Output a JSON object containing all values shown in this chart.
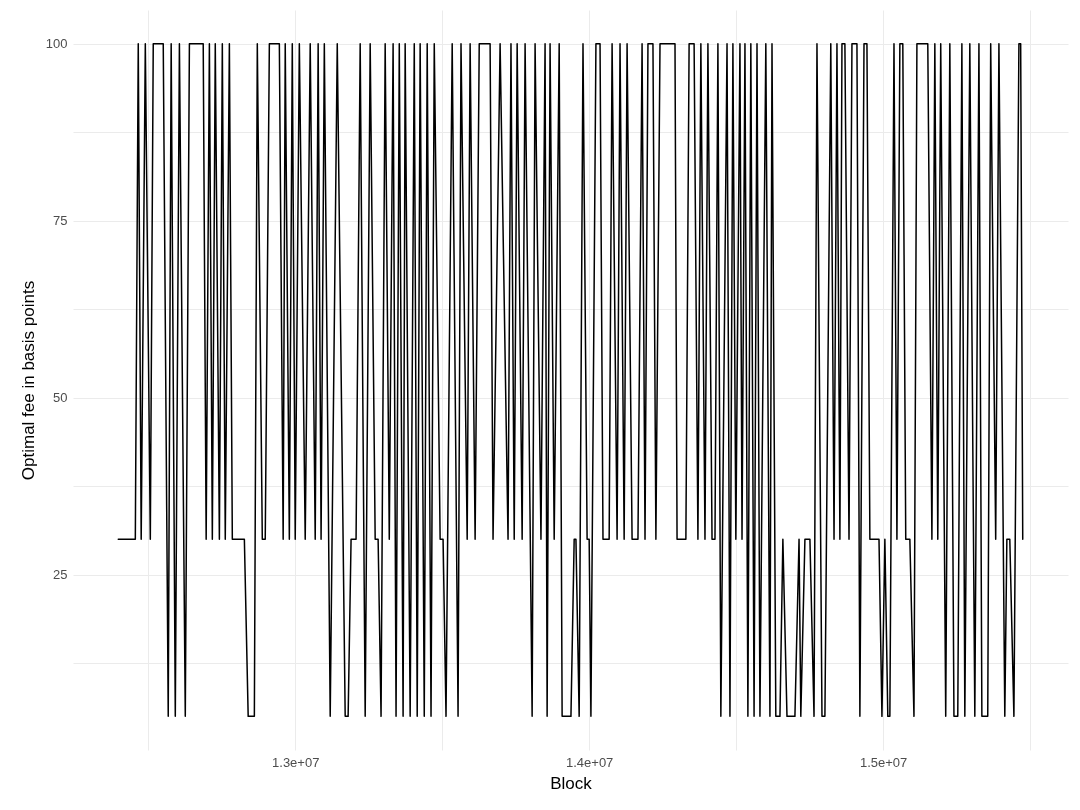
{
  "chart_data": {
    "type": "line",
    "xlabel": "Block",
    "ylabel": "Optimal fee in basis points",
    "grid": true,
    "line_style": "solid",
    "xlim": [
      12244000,
      15629000
    ],
    "ylim": [
      0.25,
      104.75
    ],
    "xticks": [
      {
        "value": 12500000,
        "label": null
      },
      {
        "value": 13000000,
        "label": "1.3e+07"
      },
      {
        "value": 13500000,
        "label": null
      },
      {
        "value": 14000000,
        "label": "1.4e+07"
      },
      {
        "value": 14500000,
        "label": null
      },
      {
        "value": 15000000,
        "label": "1.5e+07"
      },
      {
        "value": 15500000,
        "label": null
      }
    ],
    "yticks": [
      {
        "value": 12.5,
        "label": null
      },
      25,
      {
        "value": 37.5,
        "label": null
      },
      50,
      {
        "value": 62.5,
        "label": null
      },
      75,
      {
        "value": 87.5,
        "label": null
      },
      100
    ],
    "series": [
      {
        "color": "#000000",
        "x": [
          12398000,
          12456000,
          12466000,
          12476000,
          12490000,
          12507000,
          12517000,
          12551000,
          12568000,
          12578000,
          12592000,
          12606000,
          12626000,
          12640000,
          12687000,
          12697000,
          12708000,
          12718000,
          12728000,
          12742000,
          12752000,
          12762000,
          12776000,
          12786000,
          12827000,
          12840000,
          12861000,
          12871000,
          12888000,
          12898000,
          12912000,
          12946000,
          12959000,
          12966000,
          12980000,
          12990000,
          13000000,
          13014000,
          13034000,
          13051000,
          13068000,
          13078000,
          13088000,
          13099000,
          13119000,
          13143000,
          13170000,
          13180000,
          13190000,
          13207000,
          13221000,
          13238000,
          13255000,
          13272000,
          13282000,
          13292000,
          13306000,
          13320000,
          13333000,
          13343000,
          13354000,
          13367000,
          13374000,
          13391000,
          13405000,
          13415000,
          13425000,
          13439000,
          13449000,
          13462000,
          13473000,
          13493000,
          13503000,
          13513000,
          13534000,
          13554000,
          13564000,
          13585000,
          13595000,
          13612000,
          13626000,
          13663000,
          13673000,
          13697000,
          13724000,
          13734000,
          13745000,
          13755000,
          13772000,
          13782000,
          13806000,
          13816000,
          13836000,
          13850000,
          13857000,
          13867000,
          13881000,
          13898000,
          13908000,
          13938000,
          13949000,
          13955000,
          13966000,
          13979000,
          13993000,
          14000000,
          14006000,
          14023000,
          14037000,
          14047000,
          14068000,
          14078000,
          14095000,
          14105000,
          14119000,
          14129000,
          14146000,
          14166000,
          14180000,
          14190000,
          14200000,
          14217000,
          14227000,
          14241000,
          14292000,
          14299000,
          14329000,
          14340000,
          14357000,
          14370000,
          14380000,
          14394000,
          14404000,
          14418000,
          14428000,
          14438000,
          14448000,
          14469000,
          14479000,
          14489000,
          14499000,
          14513000,
          14520000,
          14530000,
          14540000,
          14550000,
          14561000,
          14571000,
          14581000,
          14601000,
          14615000,
          14622000,
          14635000,
          14649000,
          14659000,
          14673000,
          14700000,
          14714000,
          14720000,
          14734000,
          14751000,
          14765000,
          14775000,
          14792000,
          14802000,
          14822000,
          14833000,
          14843000,
          14853000,
          14860000,
          14870000,
          14884000,
          14894000,
          14911000,
          14921000,
          14935000,
          14945000,
          14955000,
          14986000,
          14996000,
          15006000,
          15016000,
          15023000,
          15037000,
          15047000,
          15057000,
          15067000,
          15077000,
          15091000,
          15105000,
          15115000,
          15152000,
          15166000,
          15176000,
          15186000,
          15196000,
          15213000,
          15227000,
          15241000,
          15254000,
          15268000,
          15278000,
          15295000,
          15312000,
          15326000,
          15336000,
          15356000,
          15366000,
          15383000,
          15394000,
          15414000,
          15421000,
          15431000,
          15445000,
          15462000,
          15468000,
          15475000
        ],
        "values": [
          30,
          30,
          100,
          30,
          100,
          30,
          100,
          100,
          5,
          100,
          5,
          100,
          5,
          100,
          100,
          30,
          100,
          30,
          100,
          30,
          100,
          30,
          100,
          30,
          30,
          5,
          5,
          100,
          30,
          30,
          100,
          100,
          30,
          100,
          30,
          100,
          30,
          100,
          30,
          100,
          30,
          100,
          30,
          100,
          5,
          100,
          5,
          5,
          30,
          30,
          100,
          5,
          100,
          30,
          30,
          5,
          100,
          30,
          100,
          5,
          100,
          5,
          100,
          5,
          100,
          5,
          100,
          5,
          100,
          5,
          100,
          30,
          30,
          5,
          100,
          5,
          100,
          30,
          100,
          30,
          100,
          100,
          30,
          100,
          30,
          100,
          30,
          100,
          30,
          100,
          5,
          100,
          30,
          100,
          5,
          100,
          30,
          100,
          5,
          5,
          30,
          30,
          5,
          100,
          30,
          30,
          5,
          100,
          100,
          30,
          30,
          100,
          30,
          100,
          30,
          100,
          30,
          30,
          100,
          30,
          100,
          100,
          30,
          100,
          100,
          30,
          30,
          100,
          100,
          30,
          100,
          30,
          100,
          30,
          30,
          100,
          5,
          100,
          5,
          100,
          30,
          100,
          30,
          100,
          5,
          100,
          5,
          100,
          5,
          100,
          5,
          100,
          5,
          5,
          30,
          5,
          5,
          30,
          5,
          30,
          30,
          5,
          100,
          5,
          5,
          100,
          30,
          100,
          30,
          100,
          100,
          30,
          100,
          100,
          5,
          100,
          100,
          30,
          30,
          5,
          30,
          5,
          5,
          100,
          30,
          100,
          100,
          30,
          30,
          5,
          100,
          100,
          30,
          100,
          30,
          100,
          5,
          100,
          5,
          5,
          100,
          5,
          100,
          5,
          100,
          5,
          5,
          100,
          30,
          100,
          5,
          30,
          30,
          5,
          100,
          100,
          30
        ]
      }
    ]
  }
}
